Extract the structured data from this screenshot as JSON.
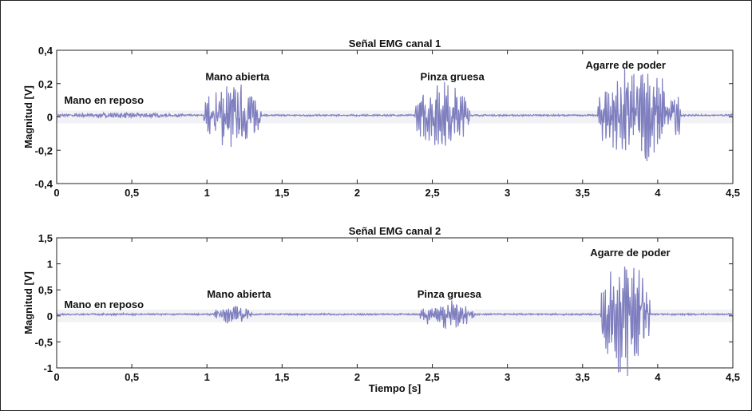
{
  "chart_data": [
    {
      "type": "line",
      "title": "Señal EMG canal 1",
      "xlabel": "",
      "ylabel": "Magnitud [V]",
      "xlim": [
        0,
        4.5
      ],
      "ylim": [
        -0.4,
        0.4
      ],
      "xticks": [
        0,
        0.5,
        1,
        1.5,
        2,
        2.5,
        3,
        3.5,
        4,
        4.5
      ],
      "xtick_labels": [
        "0",
        "0,5",
        "1",
        "1,5",
        "2",
        "2,5",
        "3",
        "3,5",
        "4",
        "4,5"
      ],
      "yticks": [
        -0.4,
        -0.2,
        0,
        0.2,
        0.4
      ],
      "ytick_labels": [
        "-0,4",
        "-0,2",
        "0",
        "0,2",
        "0,4"
      ],
      "grid": false,
      "line_color": "#7f7fc0",
      "annotations": [
        {
          "text": "Mano en reposo",
          "x": 0.05,
          "y": 0.08
        },
        {
          "text": "Mano abierta",
          "x": 0.99,
          "y": 0.22
        },
        {
          "text": "Pinza gruesa",
          "x": 2.42,
          "y": 0.22
        },
        {
          "text": "Agarre de poder",
          "x": 3.52,
          "y": 0.29
        }
      ],
      "bursts": [
        {
          "label": "Mano en reposo",
          "start": 0.0,
          "end": 0.9,
          "peak": 0.015
        },
        {
          "label": "Mano abierta",
          "start": 0.98,
          "end": 1.36,
          "peak": 0.19
        },
        {
          "label": "Pinza gruesa",
          "start": 2.38,
          "end": 2.75,
          "peak": 0.18
        },
        {
          "label": "Agarre de poder",
          "start": 3.6,
          "end": 4.15,
          "peak": 0.27
        }
      ]
    },
    {
      "type": "line",
      "title": "Señal EMG canal 2",
      "xlabel": "Tiempo [s]",
      "ylabel": "Magnitud [V]",
      "xlim": [
        0,
        4.5
      ],
      "ylim": [
        -1,
        1.5
      ],
      "xticks": [
        0,
        0.5,
        1,
        1.5,
        2,
        2.5,
        3,
        3.5,
        4,
        4.5
      ],
      "xtick_labels": [
        "0",
        "0,5",
        "1",
        "1,5",
        "2",
        "2,5",
        "3",
        "3,5",
        "4",
        "4,5"
      ],
      "yticks": [
        -1,
        -0.5,
        0,
        0.5,
        1,
        1.5
      ],
      "ytick_labels": [
        "-1",
        "-0,5",
        "0",
        "0,5",
        "1",
        "1,5"
      ],
      "grid": false,
      "line_color": "#7f7fc0",
      "annotations": [
        {
          "text": "Mano en reposo",
          "x": 0.05,
          "y": 0.15
        },
        {
          "text": "Mano abierta",
          "x": 1.0,
          "y": 0.35
        },
        {
          "text": "Pinza gruesa",
          "x": 2.4,
          "y": 0.35
        },
        {
          "text": "Agarre de poder",
          "x": 3.55,
          "y": 1.15
        }
      ],
      "bursts": [
        {
          "label": "Mano en reposo",
          "start": 0.0,
          "end": 0.9,
          "peak": 0.02
        },
        {
          "label": "Mano abierta",
          "start": 1.05,
          "end": 1.3,
          "peak": 0.18
        },
        {
          "label": "Pinza gruesa",
          "start": 2.42,
          "end": 2.78,
          "peak": 0.25
        },
        {
          "label": "Agarre de poder",
          "start": 3.62,
          "end": 3.95,
          "peak": 1.1
        }
      ]
    }
  ]
}
